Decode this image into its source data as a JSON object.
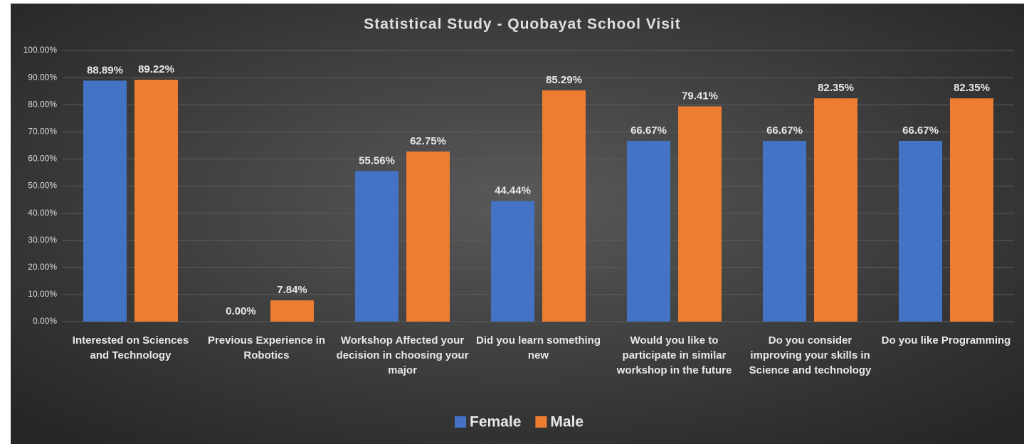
{
  "chart_data": {
    "type": "bar",
    "title": "Statistical Study - Quobayat School Visit",
    "categories": [
      "Interested on Sciences and Technology",
      "Previous Experience in Robotics",
      "Workshop Affected your decision in choosing your major",
      "Did you learn something  new",
      "Would you like to participate in similar workshop in the future",
      "Do you consider improving your skills in Science and technology",
      "Do you like Programming"
    ],
    "series": [
      {
        "name": "Female",
        "color": "#4472c4",
        "values": [
          88.89,
          0,
          55.56,
          44.44,
          66.67,
          66.67,
          66.67
        ],
        "value_labels": [
          "88.89%",
          "0.00%",
          "55.56%",
          "44.44%",
          "66.67%",
          "66.67%",
          "66.67%"
        ]
      },
      {
        "name": "Male",
        "color": "#ed7d31",
        "values": [
          89.22,
          7.84,
          62.75,
          85.29,
          79.41,
          82.35,
          82.35
        ],
        "value_labels": [
          "89.22%",
          "7.84%",
          "62.75%",
          "85.29%",
          "79.41%",
          "82.35%",
          "82.35%"
        ]
      }
    ],
    "ylim": [
      0,
      100
    ],
    "yticks": [
      {
        "value": 0,
        "label": "0.00%"
      },
      {
        "value": 10,
        "label": "10.00%"
      },
      {
        "value": 20,
        "label": "20.00%"
      },
      {
        "value": 30,
        "label": "30.00%"
      },
      {
        "value": 40,
        "label": "40.00%"
      },
      {
        "value": 50,
        "label": "50.00%"
      },
      {
        "value": 60,
        "label": "60.00%"
      },
      {
        "value": 70,
        "label": "70.00%"
      },
      {
        "value": 80,
        "label": "80.00%"
      },
      {
        "value": 90,
        "label": "90.00%"
      },
      {
        "value": 100,
        "label": "100.00%"
      }
    ],
    "grid": true,
    "legend": "bottom"
  }
}
